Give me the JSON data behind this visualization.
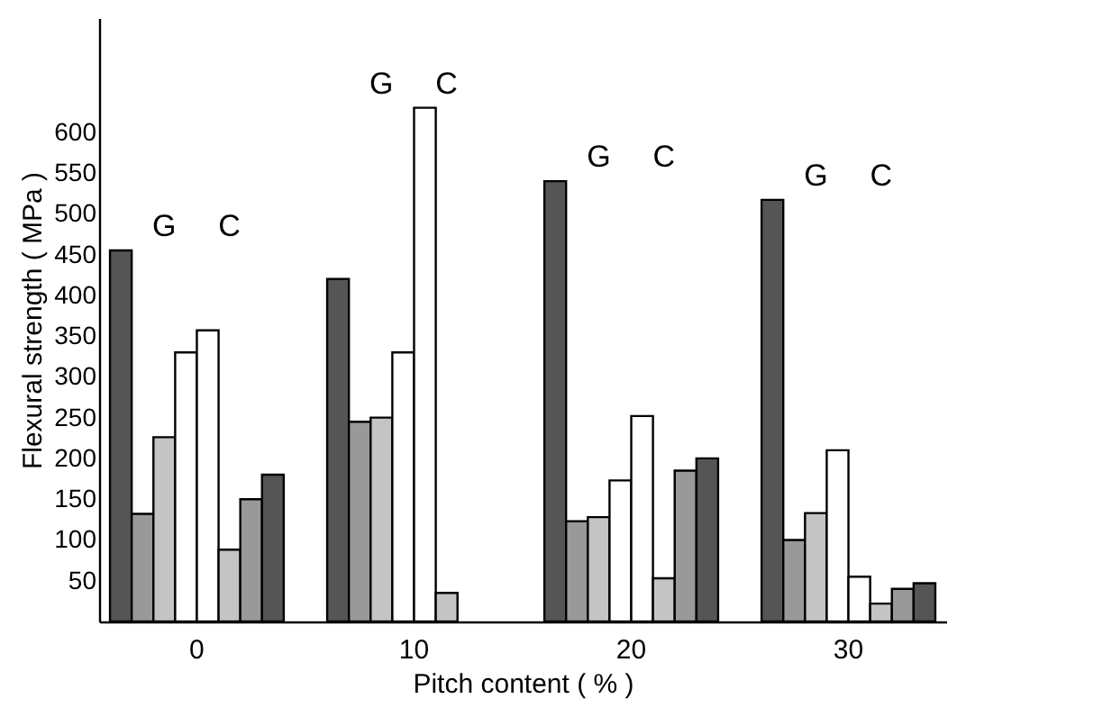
{
  "chart_data": {
    "type": "bar",
    "xlabel": "Pitch content ( % )",
    "ylabel": "Flexural strength ( MPa )",
    "categories": [
      "0",
      "10",
      "20",
      "30"
    ],
    "series": [
      {
        "color": "#555555",
        "values": [
          455,
          420,
          540,
          517
        ]
      },
      {
        "color": "#999999",
        "values": [
          132,
          245,
          123,
          100
        ]
      },
      {
        "color": "#c4c4c4",
        "values": [
          226,
          250,
          128,
          133
        ]
      },
      {
        "color": "#ffffff",
        "values": [
          330,
          330,
          173,
          210
        ]
      },
      {
        "color": "#ffffff",
        "values": [
          357,
          630,
          252,
          55
        ]
      },
      {
        "color": "#c4c4c4",
        "values": [
          88,
          35,
          53,
          22
        ]
      },
      {
        "color": "#999999",
        "values": [
          150,
          null,
          185,
          40
        ]
      },
      {
        "color": "#555555",
        "values": [
          180,
          null,
          200,
          47
        ]
      }
    ],
    "ylim": [
      0,
      740
    ],
    "yticks": [
      50,
      100,
      150,
      200,
      250,
      300,
      350,
      400,
      450,
      500,
      550,
      600
    ],
    "grid": false,
    "legend": false,
    "annotations": [
      "G",
      "C",
      "G",
      "C",
      "G",
      "C",
      "G",
      "C"
    ]
  }
}
